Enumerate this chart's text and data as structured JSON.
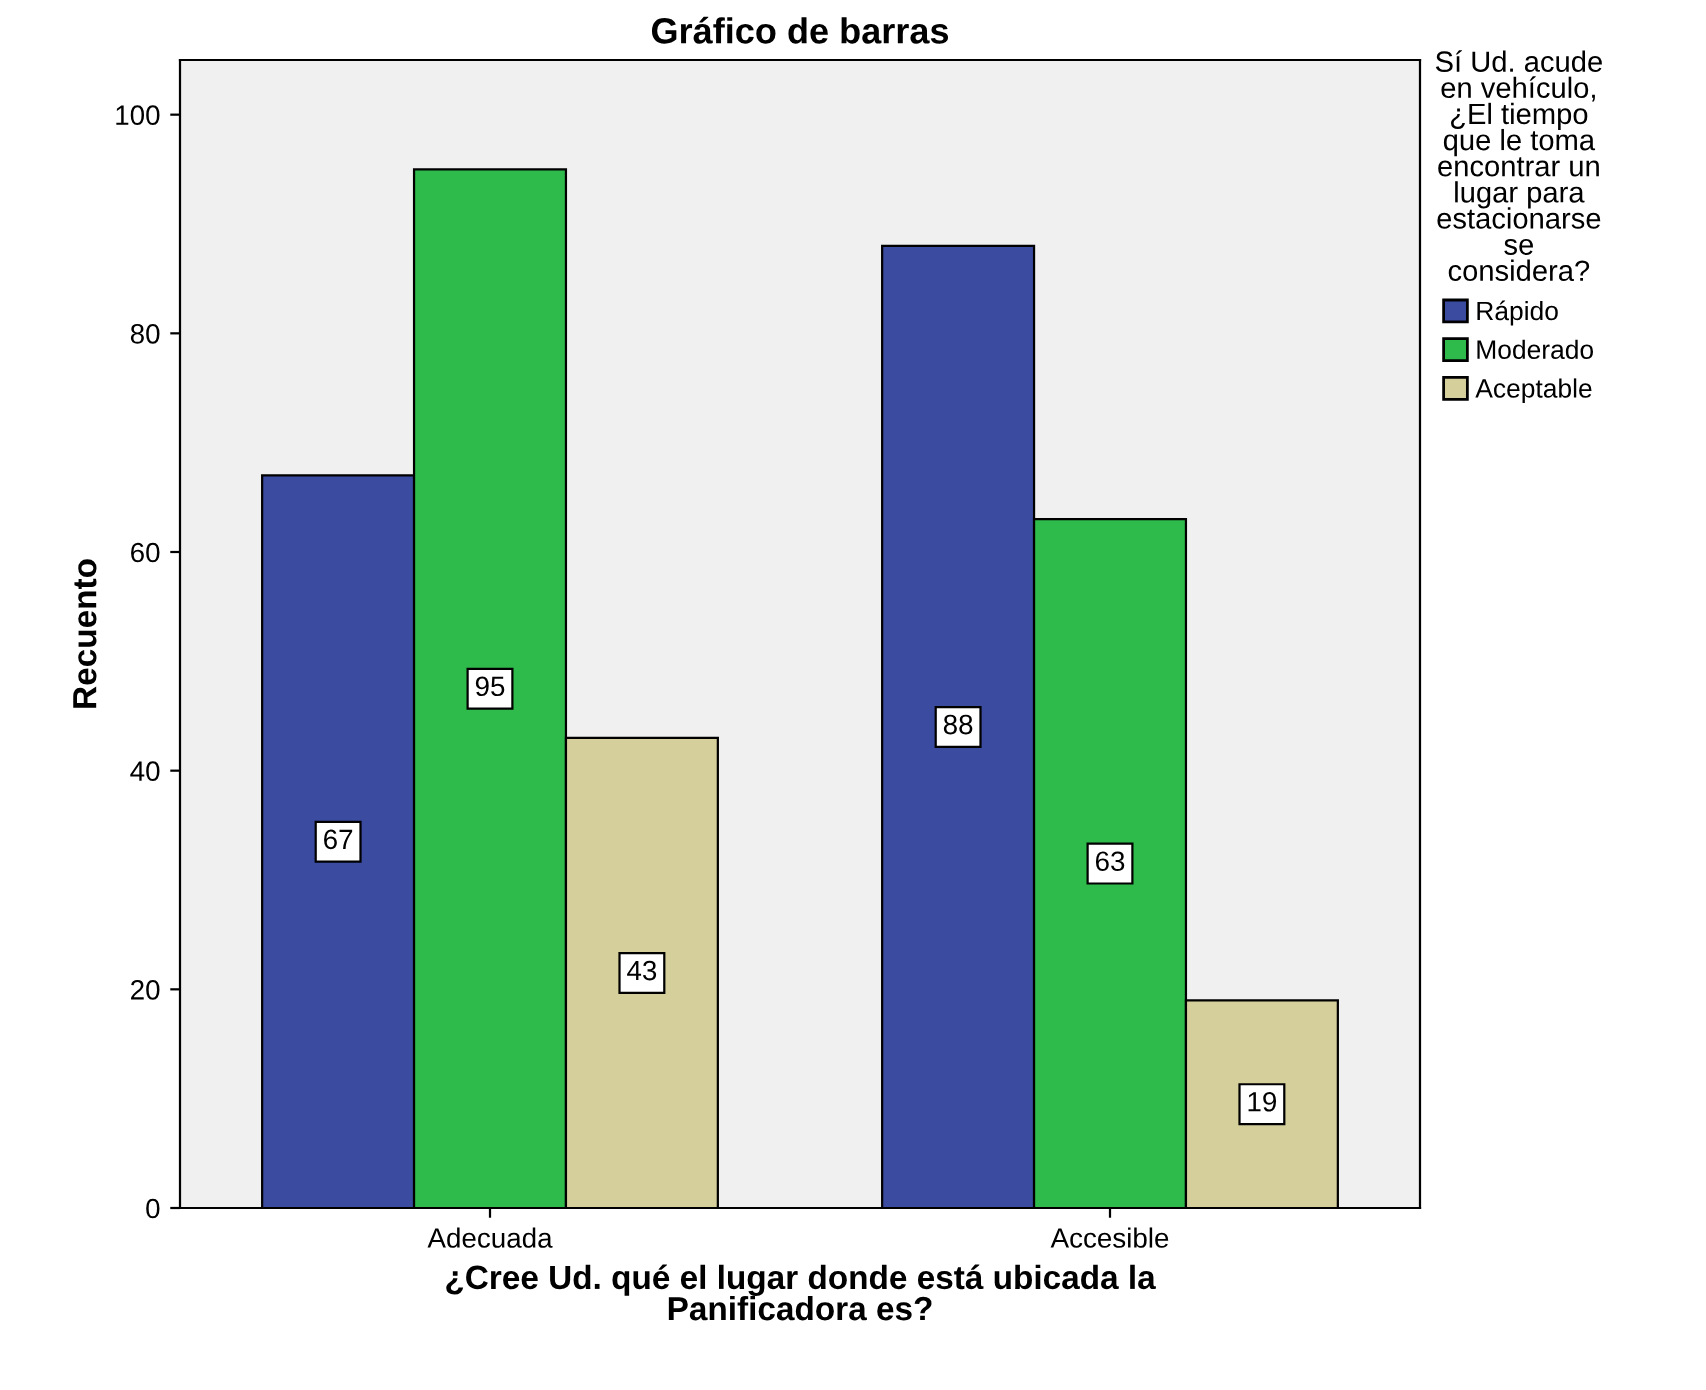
{
  "chart_data": {
    "type": "bar",
    "title": "Gráfico de barras",
    "xlabel": "¿Cree Ud. qué el lugar donde está ubicada la\nPanificadora es?",
    "ylabel": "Recuento",
    "legend_title": "Sí Ud. acude\nen vehículo,\n¿El tiempo\nque le toma\nencontrar un\nlugar para\nestacionarse\nse\nconsidera?",
    "categories": [
      "Adecuada",
      "Accesible"
    ],
    "series": [
      {
        "name": "Rápido",
        "color": "#3b4ba0",
        "values": [
          67,
          88
        ]
      },
      {
        "name": "Moderado",
        "color": "#2fbb4c",
        "values": [
          95,
          63
        ]
      },
      {
        "name": "Aceptable",
        "color": "#d5cf9c",
        "values": [
          43,
          19
        ]
      }
    ],
    "ylim": [
      0,
      105
    ],
    "yticks": [
      0,
      20,
      40,
      60,
      80,
      100
    ],
    "data_labels": true,
    "grid": false,
    "legend": "right"
  }
}
